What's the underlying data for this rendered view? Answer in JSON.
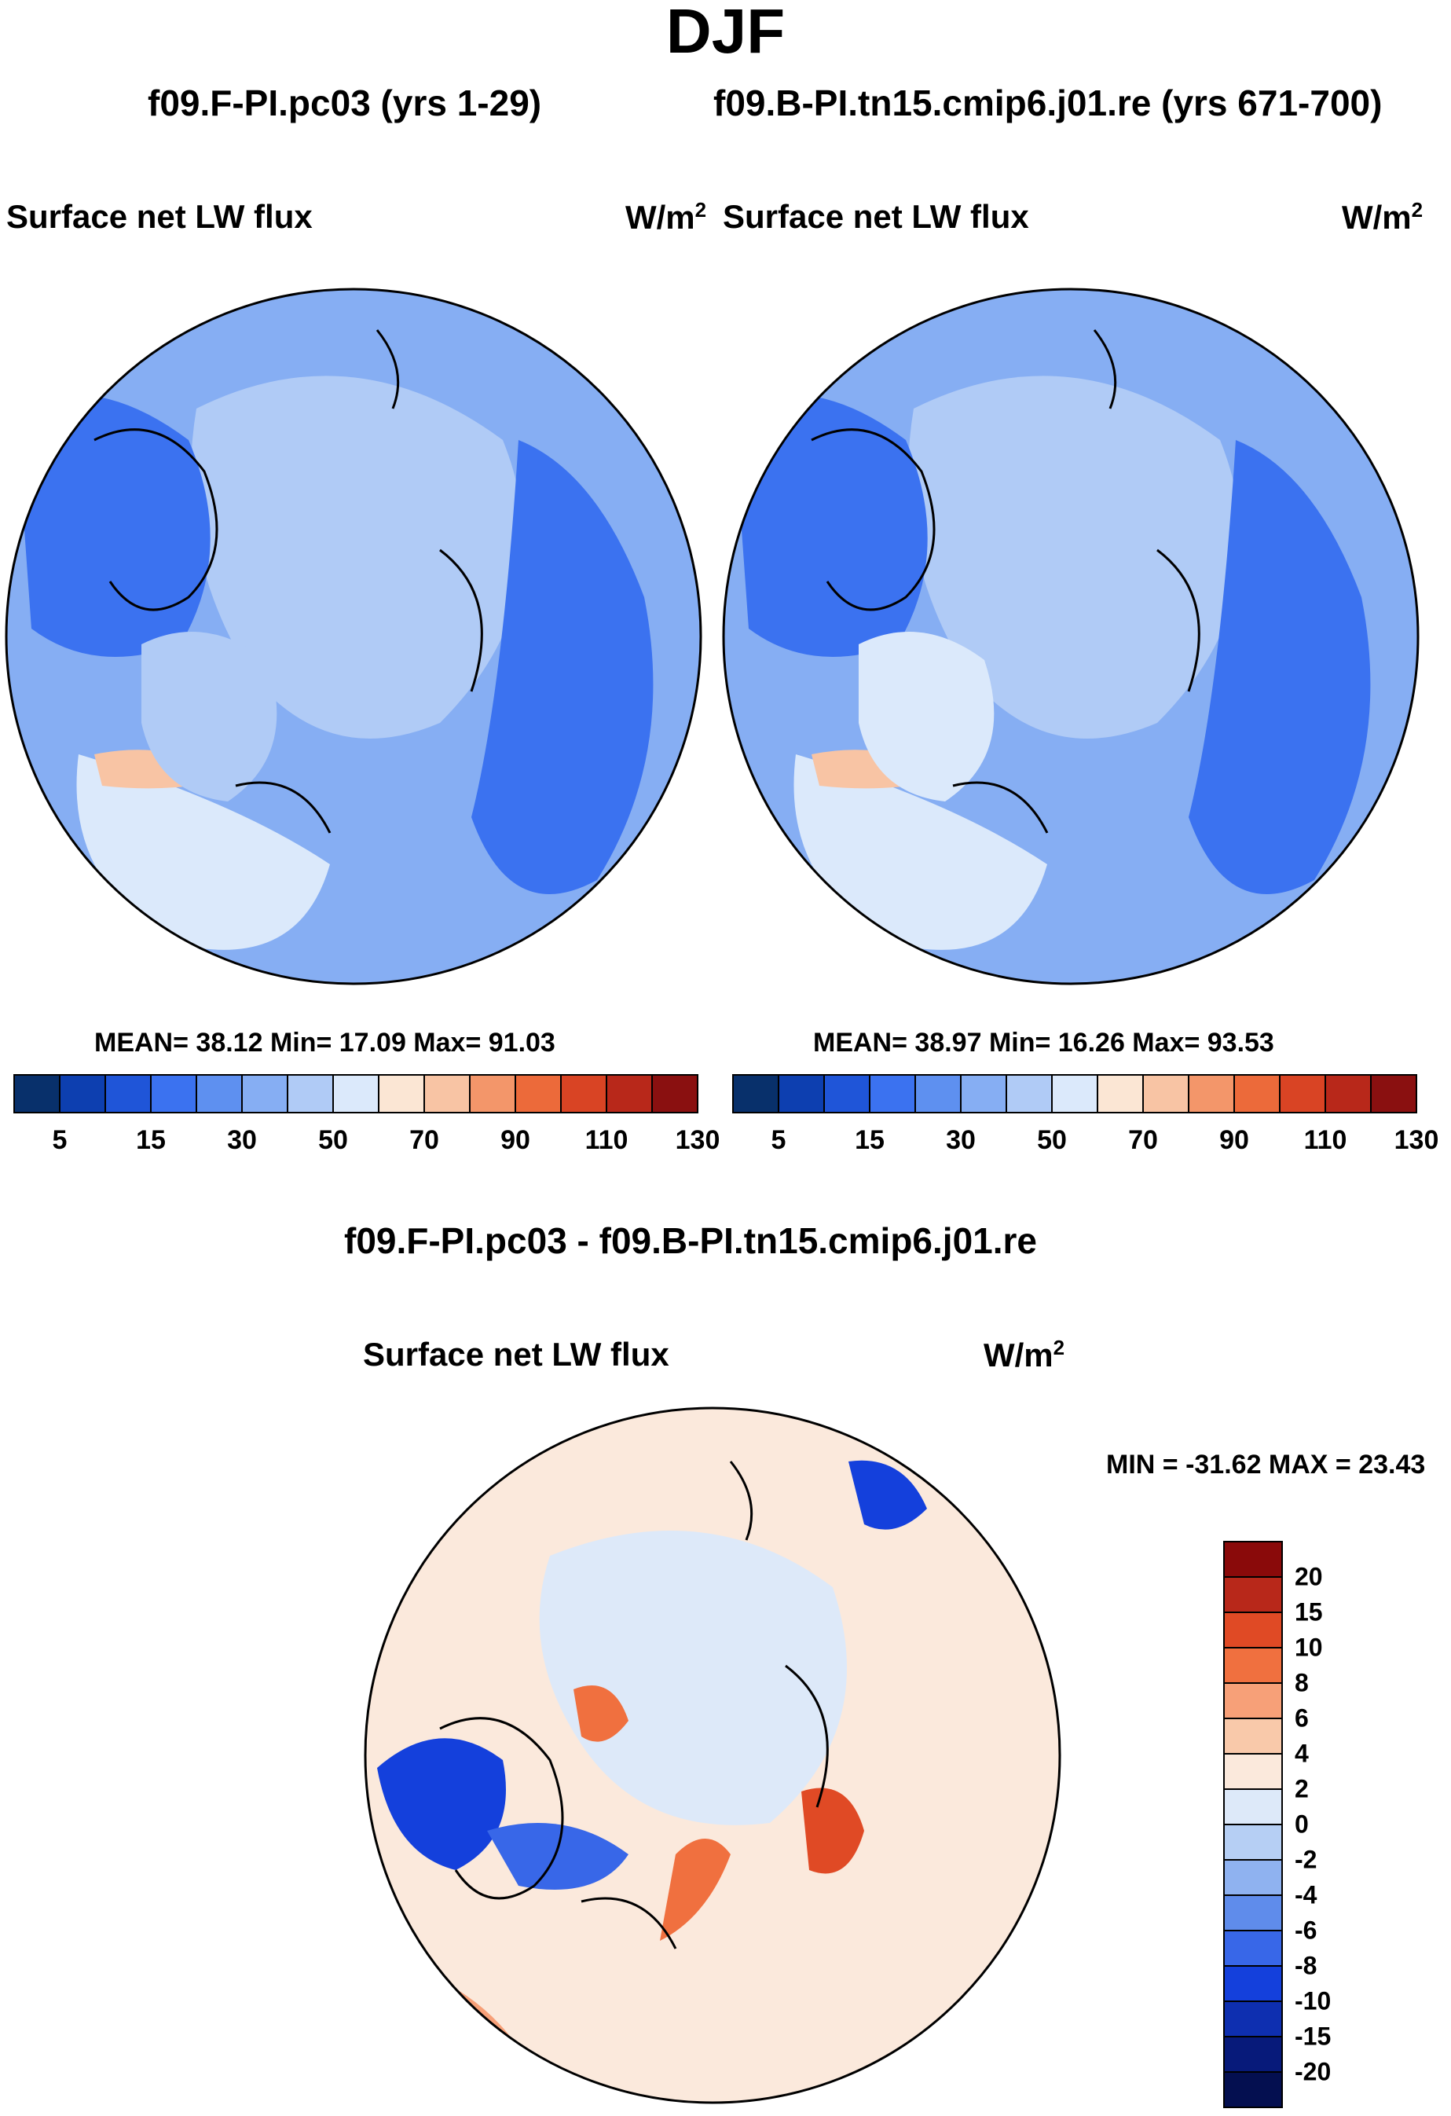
{
  "season": "DJF",
  "panels": [
    {
      "case_title": "f09.F-PI.pc03 (yrs 1-29)",
      "variable": "Surface net LW flux",
      "units_base": "W/m",
      "units_exp": "2",
      "stats": "MEAN=  38.12  Min=  17.09  Max=  91.03"
    },
    {
      "case_title": "f09.B-PI.tn15.cmip6.j01.re (yrs 671-700)",
      "variable": "Surface net LW flux",
      "units_base": "W/m",
      "units_exp": "2",
      "stats": "MEAN=  38.97  Min=  16.26  Max=  93.53"
    }
  ],
  "diff_panel": {
    "title": "f09.F-PI.pc03 - f09.B-PI.tn15.cmip6.j01.re",
    "variable": "Surface net LW flux",
    "units_base": "W/m",
    "units_exp": "2",
    "minmax": "MIN = -31.62 MAX =  23.43"
  },
  "chart_data": [
    {
      "type": "heatmap",
      "title": "f09.F-PI.pc03 (yrs 1-29)",
      "projection": "north polar stereographic",
      "variable": "Surface net LW flux",
      "units": "W/m2",
      "mean": 38.12,
      "min": 17.09,
      "max": 91.03,
      "colorbar": {
        "ticks": [
          "5",
          "15",
          "30",
          "50",
          "70",
          "90",
          "110",
          "130"
        ],
        "levels": [
          5,
          10,
          15,
          20,
          30,
          40,
          50,
          60,
          70,
          80,
          90,
          100,
          110,
          120,
          130
        ],
        "colors": [
          "#08306b",
          "#0d3fb0",
          "#1f55d8",
          "#3b72f0",
          "#5e90f0",
          "#86aef3",
          "#b0cbf6",
          "#dbe9fb",
          "#fbe6d4",
          "#f8c4a4",
          "#f3966a",
          "#ec6a3a",
          "#d94424",
          "#b8281a",
          "#8a1010"
        ]
      }
    },
    {
      "type": "heatmap",
      "title": "f09.B-PI.tn15.cmip6.j01.re (yrs 671-700)",
      "projection": "north polar stereographic",
      "variable": "Surface net LW flux",
      "units": "W/m2",
      "mean": 38.97,
      "min": 16.26,
      "max": 93.53,
      "colorbar": {
        "ticks": [
          "5",
          "15",
          "30",
          "50",
          "70",
          "90",
          "110",
          "130"
        ],
        "levels": [
          5,
          10,
          15,
          20,
          30,
          40,
          50,
          60,
          70,
          80,
          90,
          100,
          110,
          120,
          130
        ],
        "colors": [
          "#08306b",
          "#0d3fb0",
          "#1f55d8",
          "#3b72f0",
          "#5e90f0",
          "#86aef3",
          "#b0cbf6",
          "#dbe9fb",
          "#fbe6d4",
          "#f8c4a4",
          "#f3966a",
          "#ec6a3a",
          "#d94424",
          "#b8281a",
          "#8a1010"
        ]
      }
    },
    {
      "type": "heatmap",
      "title": "f09.F-PI.pc03 - f09.B-PI.tn15.cmip6.j01.re",
      "projection": "north polar stereographic",
      "variable": "Surface net LW flux",
      "units": "W/m2",
      "min": -31.62,
      "max": 23.43,
      "colorbar": {
        "ticks": [
          "20",
          "15",
          "10",
          "8",
          "6",
          "4",
          "2",
          "0",
          "-2",
          "-4",
          "-6",
          "-8",
          "-10",
          "-15",
          "-20"
        ],
        "colors": [
          "#8a0a0a",
          "#b8281a",
          "#e04a25",
          "#f0703f",
          "#f7a078",
          "#f9c9aa",
          "#fbe9dc",
          "#dde9f9",
          "#b6cff4",
          "#8fb2f0",
          "#5f8ceb",
          "#3867e8",
          "#1440dc",
          "#0e2fb0",
          "#071a7a",
          "#040f50"
        ]
      }
    }
  ]
}
